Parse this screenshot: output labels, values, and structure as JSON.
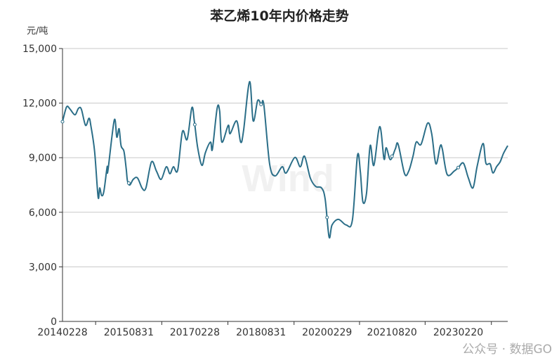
{
  "chart_data": {
    "type": "line",
    "title": "苯乙烯10年内价格走势",
    "ylabel": "元/吨",
    "ylim": [
      0,
      15000
    ],
    "yticks": [
      0,
      3000,
      6000,
      9000,
      12000,
      15000
    ],
    "ytick_labels": [
      "0",
      "3,000",
      "6,000",
      "9,000",
      "12,000",
      "15,000"
    ],
    "xlim": [
      "2014-02-28",
      "2024-04-05"
    ],
    "xtick_labels": [
      "20140228",
      "20150831",
      "20170228",
      "20180831",
      "20200229",
      "20210820",
      "20230220"
    ],
    "grid": "horizontal",
    "line_color": "#2b6e88",
    "points": [
      [
        "2014-02-28",
        10980
      ],
      [
        "2014-04-03",
        11790
      ],
      [
        "2014-05-01",
        11670
      ],
      [
        "2014-06-11",
        11360
      ],
      [
        "2014-07-10",
        11710
      ],
      [
        "2014-08-03",
        11670
      ],
      [
        "2014-09-07",
        10780
      ],
      [
        "2014-10-06",
        11170
      ],
      [
        "2014-10-22",
        10710
      ],
      [
        "2014-11-21",
        9350
      ],
      [
        "2014-12-20",
        6840
      ],
      [
        "2015-01-02",
        7340
      ],
      [
        "2015-01-18",
        6920
      ],
      [
        "2015-02-06",
        7150
      ],
      [
        "2015-03-05",
        8500
      ],
      [
        "2015-03-11",
        8270
      ],
      [
        "2015-05-03",
        11060
      ],
      [
        "2015-05-24",
        10130
      ],
      [
        "2015-06-12",
        10590
      ],
      [
        "2015-06-28",
        9660
      ],
      [
        "2015-07-22",
        9350
      ],
      [
        "2015-08-10",
        8390
      ],
      [
        "2015-08-20",
        7730
      ],
      [
        "2015-09-09",
        7500
      ],
      [
        "2015-10-07",
        7810
      ],
      [
        "2015-11-11",
        7890
      ],
      [
        "2015-12-21",
        7310
      ],
      [
        "2016-01-20",
        7340
      ],
      [
        "2016-03-06",
        8770
      ],
      [
        "2016-04-16",
        8270
      ],
      [
        "2016-05-25",
        7810
      ],
      [
        "2016-07-07",
        8500
      ],
      [
        "2016-08-06",
        8120
      ],
      [
        "2016-09-04",
        8500
      ],
      [
        "2016-10-09",
        8310
      ],
      [
        "2016-11-18",
        10440
      ],
      [
        "2016-12-27",
        10010
      ],
      [
        "2017-02-04",
        11750
      ],
      [
        "2017-02-25",
        10980
      ],
      [
        "2017-03-24",
        9550
      ],
      [
        "2017-04-28",
        8580
      ],
      [
        "2017-05-27",
        9280
      ],
      [
        "2017-07-08",
        9860
      ],
      [
        "2017-07-24",
        9470
      ],
      [
        "2017-09-01",
        11710
      ],
      [
        "2017-09-22",
        11560
      ],
      [
        "2017-10-10",
        9860
      ],
      [
        "2017-12-02",
        10780
      ],
      [
        "2017-12-18",
        10320
      ],
      [
        "2018-02-10",
        11020
      ],
      [
        "2018-03-15",
        9860
      ],
      [
        "2018-04-08",
        10480
      ],
      [
        "2018-05-28",
        13180
      ],
      [
        "2018-06-27",
        11020
      ],
      [
        "2018-08-03",
        12140
      ],
      [
        "2018-09-02",
        11910
      ],
      [
        "2018-09-23",
        11910
      ],
      [
        "2018-11-10",
        8660
      ],
      [
        "2018-12-25",
        8000
      ],
      [
        "2019-02-22",
        8500
      ],
      [
        "2019-03-27",
        8160
      ],
      [
        "2019-06-07",
        9010
      ],
      [
        "2019-07-22",
        8500
      ],
      [
        "2019-08-26",
        9080
      ],
      [
        "2019-10-13",
        7890
      ],
      [
        "2019-11-27",
        7420
      ],
      [
        "2020-01-14",
        7340
      ],
      [
        "2020-02-13",
        6730
      ],
      [
        "2020-03-17",
        4640
      ],
      [
        "2020-04-10",
        5300
      ],
      [
        "2020-06-02",
        5610
      ],
      [
        "2020-08-06",
        5300
      ],
      [
        "2020-09-26",
        5570
      ],
      [
        "2020-11-07",
        9120
      ],
      [
        "2020-12-01",
        8200
      ],
      [
        "2020-12-22",
        6570
      ],
      [
        "2021-01-21",
        7040
      ],
      [
        "2021-02-20",
        9660
      ],
      [
        "2021-03-23",
        8580
      ],
      [
        "2021-05-10",
        10710
      ],
      [
        "2021-06-15",
        8930
      ],
      [
        "2021-07-03",
        9550
      ],
      [
        "2021-08-07",
        8890
      ],
      [
        "2021-09-16",
        9470
      ],
      [
        "2021-10-10",
        9740
      ],
      [
        "2021-12-02",
        8120
      ],
      [
        "2022-01-06",
        8270
      ],
      [
        "2022-02-10",
        9080
      ],
      [
        "2022-03-09",
        9860
      ],
      [
        "2022-04-18",
        9740
      ],
      [
        "2022-06-11",
        10900
      ],
      [
        "2022-07-15",
        10320
      ],
      [
        "2022-08-19",
        8660
      ],
      [
        "2022-09-23",
        9630
      ],
      [
        "2022-10-11",
        9470
      ],
      [
        "2022-11-20",
        8080
      ],
      [
        "2023-01-18",
        8270
      ],
      [
        "2023-02-22",
        8470
      ],
      [
        "2023-04-04",
        8700
      ],
      [
        "2023-05-13",
        7920
      ],
      [
        "2023-06-22",
        7340
      ],
      [
        "2023-07-27",
        8540
      ],
      [
        "2023-09-13",
        9780
      ],
      [
        "2023-10-07",
        8700
      ],
      [
        "2023-11-11",
        8660
      ],
      [
        "2023-12-04",
        8160
      ],
      [
        "2024-01-03",
        8500
      ],
      [
        "2024-02-02",
        8770
      ],
      [
        "2024-03-01",
        9240
      ],
      [
        "2024-04-05",
        9660
      ]
    ]
  },
  "watermark": "Wind",
  "footer_watermark": "公众号 · 数据GO"
}
